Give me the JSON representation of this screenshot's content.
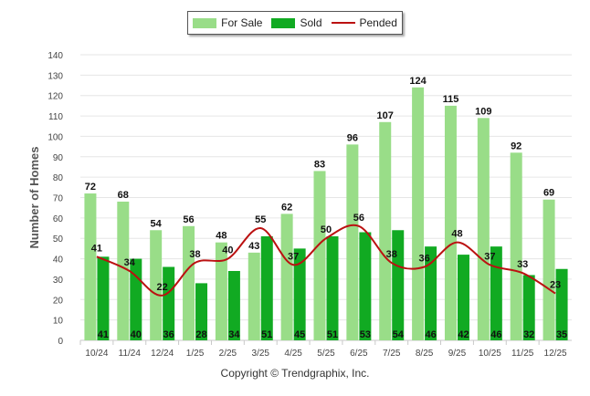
{
  "chart_data": {
    "type": "bar",
    "categories": [
      "10/24",
      "11/24",
      "12/24",
      "1/25",
      "2/25",
      "3/25",
      "4/25",
      "5/25",
      "6/25",
      "7/25",
      "8/25",
      "9/25",
      "10/25",
      "11/25",
      "12/25"
    ],
    "series": [
      {
        "name": "For Sale",
        "type": "bar",
        "color": "#99dd88",
        "values": [
          72,
          68,
          54,
          56,
          48,
          43,
          62,
          83,
          96,
          107,
          124,
          115,
          109,
          92,
          69
        ]
      },
      {
        "name": "Sold",
        "type": "bar",
        "color": "#11aa22",
        "values": [
          41,
          40,
          36,
          28,
          34,
          51,
          45,
          51,
          53,
          54,
          46,
          42,
          46,
          32,
          35
        ]
      },
      {
        "name": "Pended",
        "type": "line",
        "color": "#bb1111",
        "values": [
          41,
          34,
          22,
          38,
          40,
          55,
          37,
          50,
          56,
          38,
          36,
          48,
          37,
          33,
          23
        ]
      }
    ],
    "ylabel": "Number of Homes",
    "xlabel": "",
    "ylim": [
      0,
      140
    ],
    "yticks": [
      0,
      10,
      20,
      30,
      40,
      50,
      60,
      70,
      80,
      90,
      100,
      110,
      120,
      130,
      140
    ],
    "grid": true,
    "legend_position": "top-center"
  },
  "footer": {
    "copyright": "Copyright © Trendgraphix, Inc."
  }
}
